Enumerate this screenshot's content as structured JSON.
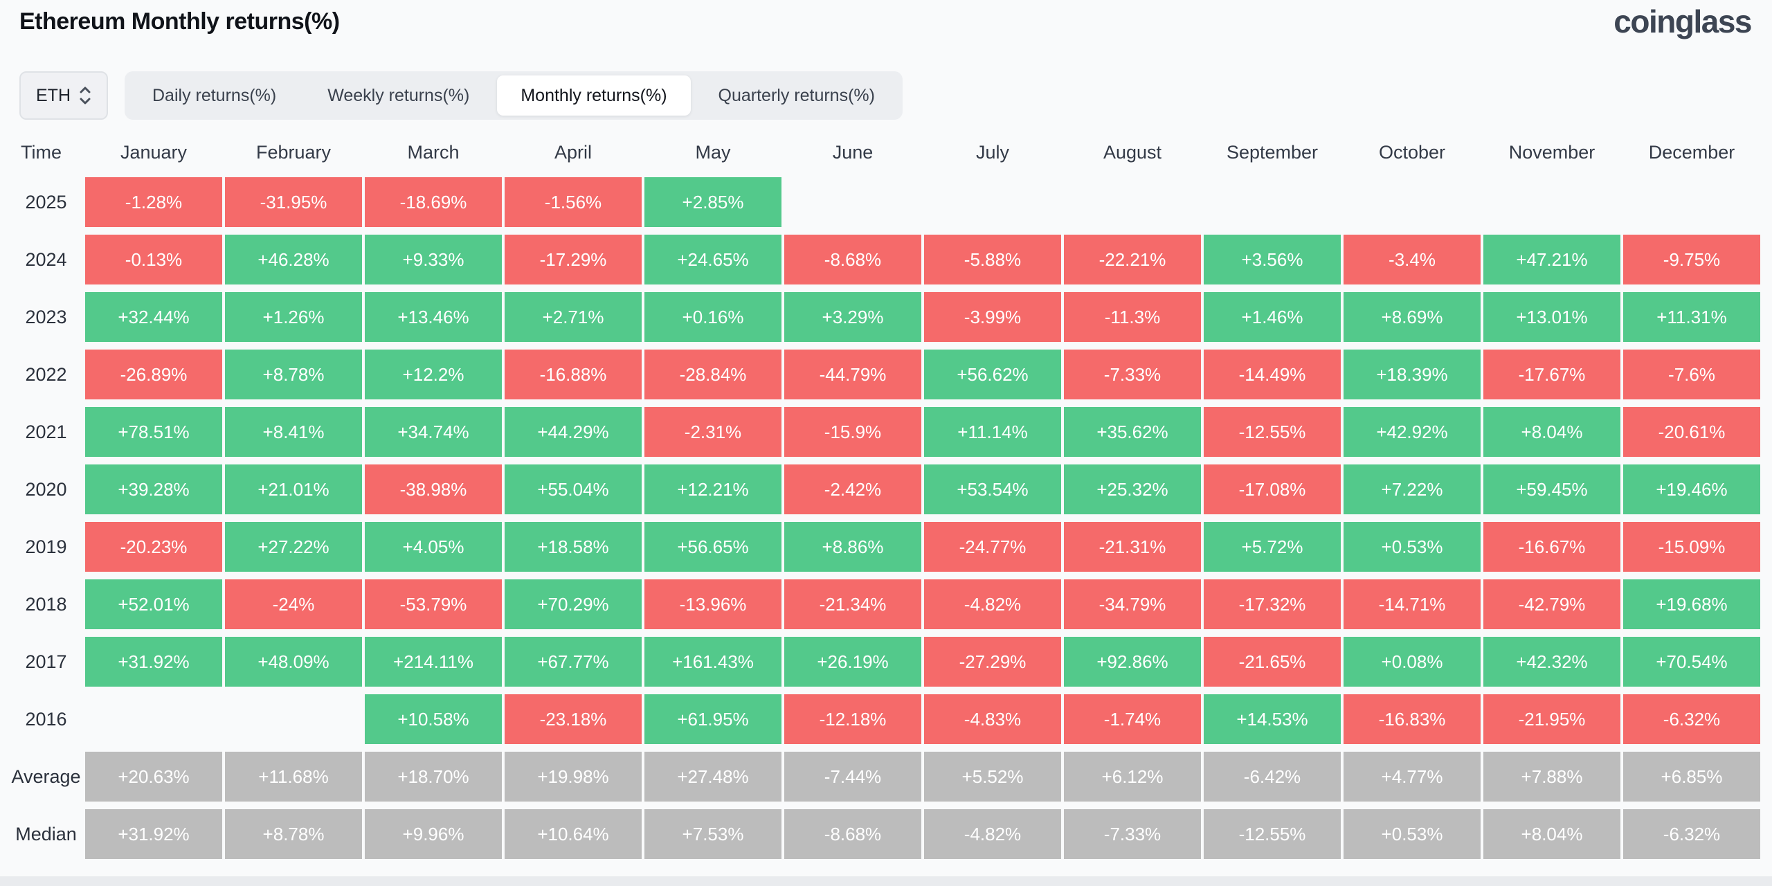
{
  "page": {
    "title": "Ethereum Monthly returns(%)",
    "brand": "coinglass",
    "coin_selector": {
      "value": "ETH"
    },
    "tabs": [
      {
        "label": "Daily returns(%)",
        "active": false
      },
      {
        "label": "Weekly returns(%)",
        "active": false
      },
      {
        "label": "Monthly returns(%)",
        "active": true
      },
      {
        "label": "Quarterly returns(%)",
        "active": false
      }
    ]
  },
  "colors": {
    "positive": "#53c98b",
    "negative": "#f56a6a",
    "summary": "#bcbcbc"
  },
  "chart_data": {
    "type": "heatmap",
    "title": "Ethereum Monthly returns(%)",
    "unit": "%",
    "legend_position": "none",
    "columns": [
      "Time",
      "January",
      "February",
      "March",
      "April",
      "May",
      "June",
      "July",
      "August",
      "September",
      "October",
      "November",
      "December"
    ],
    "rows": [
      {
        "label": "2025",
        "summary": false,
        "values": [
          "-1.28%",
          "-31.95%",
          "-18.69%",
          "-1.56%",
          "+2.85%",
          "",
          "",
          "",
          "",
          "",
          "",
          ""
        ]
      },
      {
        "label": "2024",
        "summary": false,
        "values": [
          "-0.13%",
          "+46.28%",
          "+9.33%",
          "-17.29%",
          "+24.65%",
          "-8.68%",
          "-5.88%",
          "-22.21%",
          "+3.56%",
          "-3.4%",
          "+47.21%",
          "-9.75%"
        ]
      },
      {
        "label": "2023",
        "summary": false,
        "values": [
          "+32.44%",
          "+1.26%",
          "+13.46%",
          "+2.71%",
          "+0.16%",
          "+3.29%",
          "-3.99%",
          "-11.3%",
          "+1.46%",
          "+8.69%",
          "+13.01%",
          "+11.31%"
        ]
      },
      {
        "label": "2022",
        "summary": false,
        "values": [
          "-26.89%",
          "+8.78%",
          "+12.2%",
          "-16.88%",
          "-28.84%",
          "-44.79%",
          "+56.62%",
          "-7.33%",
          "-14.49%",
          "+18.39%",
          "-17.67%",
          "-7.6%"
        ]
      },
      {
        "label": "2021",
        "summary": false,
        "values": [
          "+78.51%",
          "+8.41%",
          "+34.74%",
          "+44.29%",
          "-2.31%",
          "-15.9%",
          "+11.14%",
          "+35.62%",
          "-12.55%",
          "+42.92%",
          "+8.04%",
          "-20.61%"
        ]
      },
      {
        "label": "2020",
        "summary": false,
        "values": [
          "+39.28%",
          "+21.01%",
          "-38.98%",
          "+55.04%",
          "+12.21%",
          "-2.42%",
          "+53.54%",
          "+25.32%",
          "-17.08%",
          "+7.22%",
          "+59.45%",
          "+19.46%"
        ]
      },
      {
        "label": "2019",
        "summary": false,
        "values": [
          "-20.23%",
          "+27.22%",
          "+4.05%",
          "+18.58%",
          "+56.65%",
          "+8.86%",
          "-24.77%",
          "-21.31%",
          "+5.72%",
          "+0.53%",
          "-16.67%",
          "-15.09%"
        ]
      },
      {
        "label": "2018",
        "summary": false,
        "values": [
          "+52.01%",
          "-24%",
          "-53.79%",
          "+70.29%",
          "-13.96%",
          "-21.34%",
          "-4.82%",
          "-34.79%",
          "-17.32%",
          "-14.71%",
          "-42.79%",
          "+19.68%"
        ]
      },
      {
        "label": "2017",
        "summary": false,
        "values": [
          "+31.92%",
          "+48.09%",
          "+214.11%",
          "+67.77%",
          "+161.43%",
          "+26.19%",
          "-27.29%",
          "+92.86%",
          "-21.65%",
          "+0.08%",
          "+42.32%",
          "+70.54%"
        ]
      },
      {
        "label": "2016",
        "summary": false,
        "values": [
          "",
          "",
          "+10.58%",
          "-23.18%",
          "+61.95%",
          "-12.18%",
          "-4.83%",
          "-1.74%",
          "+14.53%",
          "-16.83%",
          "-21.95%",
          "-6.32%"
        ]
      },
      {
        "label": "Average",
        "summary": true,
        "values": [
          "+20.63%",
          "+11.68%",
          "+18.70%",
          "+19.98%",
          "+27.48%",
          "-7.44%",
          "+5.52%",
          "+6.12%",
          "-6.42%",
          "+4.77%",
          "+7.88%",
          "+6.85%"
        ]
      },
      {
        "label": "Median",
        "summary": true,
        "values": [
          "+31.92%",
          "+8.78%",
          "+9.96%",
          "+10.64%",
          "+7.53%",
          "-8.68%",
          "-4.82%",
          "-7.33%",
          "-12.55%",
          "+0.53%",
          "+8.04%",
          "-6.32%"
        ]
      }
    ]
  }
}
